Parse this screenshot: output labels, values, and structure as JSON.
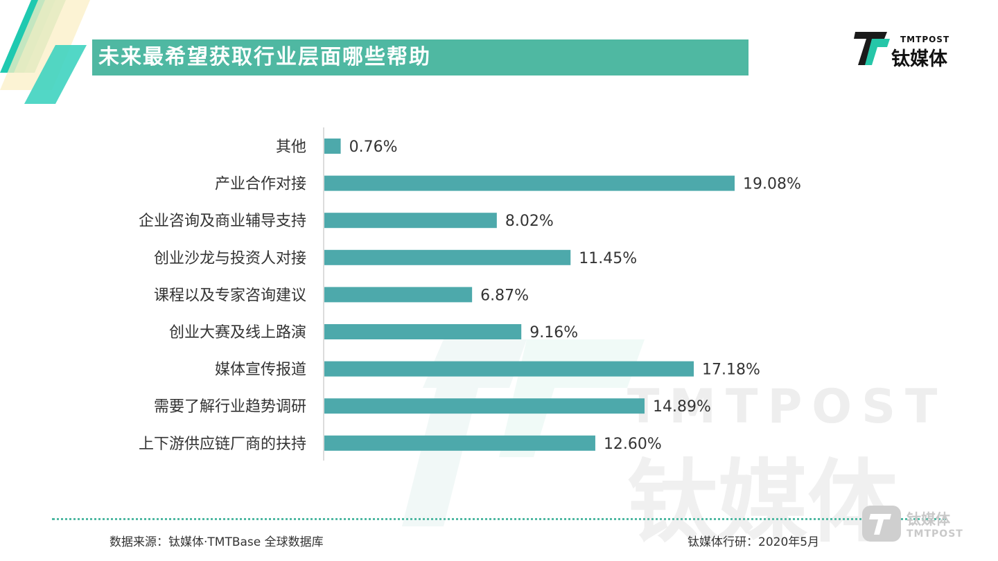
{
  "header": {
    "title": "未来最希望获取行业层面哪些帮助",
    "logo_en": "TMTPOST",
    "logo_cn": "钛媒体"
  },
  "footer": {
    "source": "数据来源：钛媒体·TMTBase 全球数据库",
    "date": "钛媒体行研：2020年5月"
  },
  "watermark": {
    "en": "TMTPOST",
    "cn": "钛媒体"
  },
  "corner_logo": {
    "cn": "钛媒体",
    "en": "TMTPOST"
  },
  "colors": {
    "accent": "#4fb8a2",
    "bar": "#4da9ab",
    "text": "#333333"
  },
  "chart_data": {
    "type": "bar",
    "orientation": "horizontal",
    "categories": [
      "其他",
      "产业合作对接",
      "企业咨询及商业辅导支持",
      "创业沙龙与投资人对接",
      "课程以及专家咨询建议",
      "创业大赛及线上路演",
      "媒体宣传报道",
      "需要了解行业趋势调研",
      "上下游供应链厂商的扶持"
    ],
    "values": [
      0.76,
      19.08,
      8.02,
      11.45,
      6.87,
      9.16,
      17.18,
      14.89,
      12.6
    ],
    "value_labels": [
      "0.76%",
      "19.08%",
      "8.02%",
      "11.45%",
      "6.87%",
      "9.16%",
      "17.18%",
      "14.89%",
      "12.60%"
    ],
    "title": "未来最希望获取行业层面哪些帮助",
    "xlabel": "",
    "ylabel": "",
    "xlim": [
      0,
      19.08
    ],
    "grid": false,
    "legend": "none"
  }
}
